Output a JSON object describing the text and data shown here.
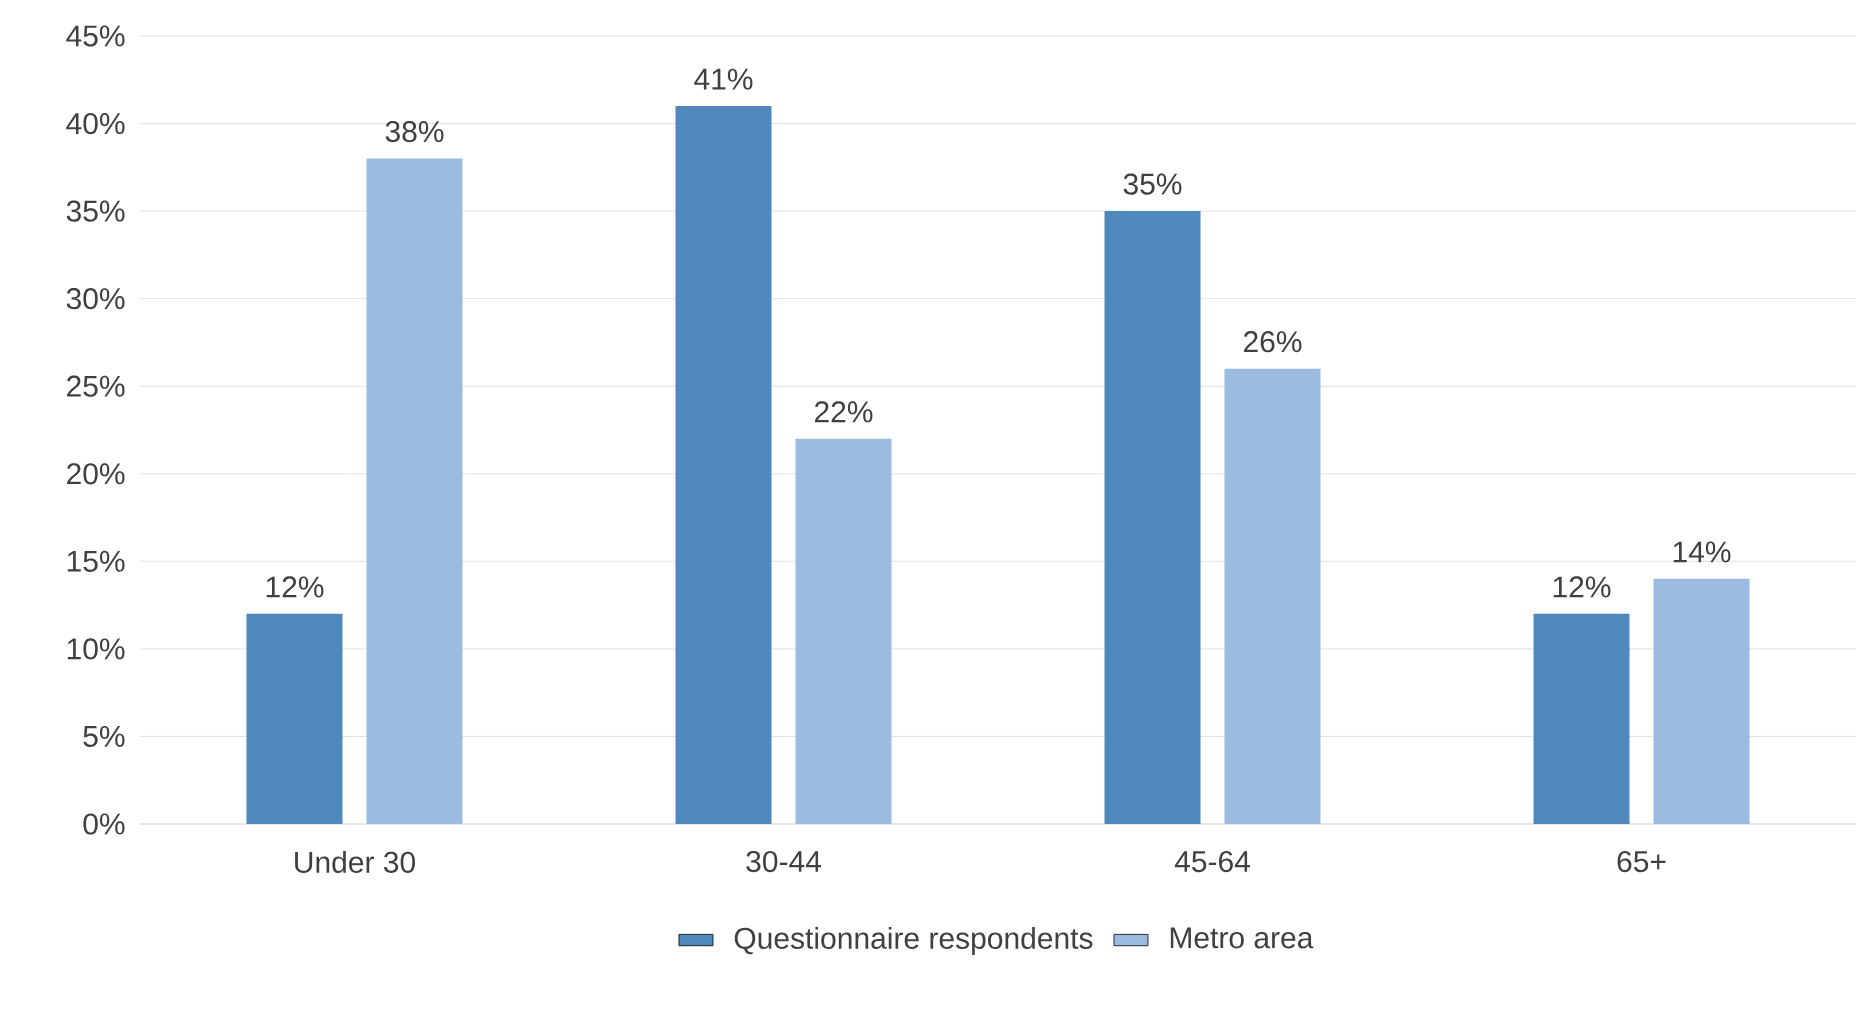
{
  "chart_data": {
    "type": "bar",
    "categories": [
      "Under 30",
      "30-44",
      "45-64",
      "65+"
    ],
    "series": [
      {
        "name": "Questionnaire respondents",
        "color": "#4f88bc",
        "values": [
          12,
          41,
          35,
          12
        ],
        "value_labels": [
          "12%",
          "41%",
          "35%",
          "12%"
        ]
      },
      {
        "name": "Metro area",
        "color": "#9bbbe0",
        "values": [
          38,
          22,
          26,
          14
        ],
        "value_labels": [
          "38%",
          "22%",
          "26%",
          "14%"
        ]
      }
    ],
    "ylim": [
      0,
      45
    ],
    "yticks": [
      {
        "value": 0,
        "label": "0%"
      },
      {
        "value": 5,
        "label": "5%"
      },
      {
        "value": 10,
        "label": "10%"
      },
      {
        "value": 15,
        "label": "15%"
      },
      {
        "value": 20,
        "label": "20%"
      },
      {
        "value": 25,
        "label": "25%"
      },
      {
        "value": 30,
        "label": "30%"
      },
      {
        "value": 35,
        "label": "35%"
      },
      {
        "value": 40,
        "label": "40%"
      },
      {
        "value": 45,
        "label": "45%"
      }
    ],
    "grid": "y",
    "legend": "bottom"
  }
}
